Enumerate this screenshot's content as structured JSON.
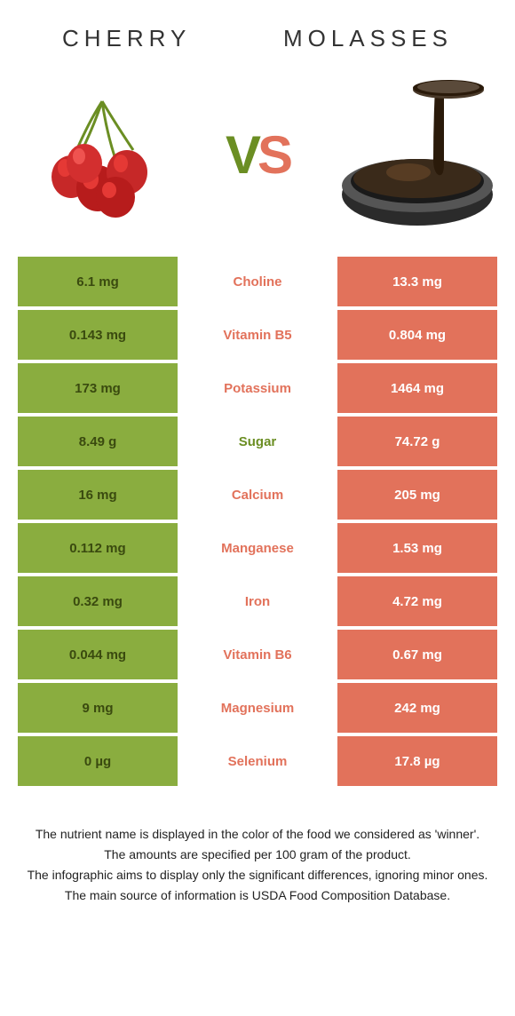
{
  "food1": {
    "name": "CHERRY",
    "color": "#8aad3f"
  },
  "food2": {
    "name": "MOLASSES",
    "color": "#e2725b"
  },
  "vs": {
    "v": "V",
    "s": "S"
  },
  "nutrient_green": "#6b8e23",
  "nutrient_orange": "#e2725b",
  "rows": [
    {
      "left": "6.1 mg",
      "name": "Choline",
      "right": "13.3 mg",
      "winner": "right"
    },
    {
      "left": "0.143 mg",
      "name": "Vitamin B5",
      "right": "0.804 mg",
      "winner": "right"
    },
    {
      "left": "173 mg",
      "name": "Potassium",
      "right": "1464 mg",
      "winner": "right"
    },
    {
      "left": "8.49 g",
      "name": "Sugar",
      "right": "74.72 g",
      "winner": "left"
    },
    {
      "left": "16 mg",
      "name": "Calcium",
      "right": "205 mg",
      "winner": "right"
    },
    {
      "left": "0.112 mg",
      "name": "Manganese",
      "right": "1.53 mg",
      "winner": "right"
    },
    {
      "left": "0.32 mg",
      "name": "Iron",
      "right": "4.72 mg",
      "winner": "right"
    },
    {
      "left": "0.044 mg",
      "name": "Vitamin B6",
      "right": "0.67 mg",
      "winner": "right"
    },
    {
      "left": "9 mg",
      "name": "Magnesium",
      "right": "242 mg",
      "winner": "right"
    },
    {
      "left": "0 µg",
      "name": "Selenium",
      "right": "17.8 µg",
      "winner": "right"
    }
  ],
  "footer": {
    "l1": "The nutrient name is displayed in the color of the food we considered as 'winner'.",
    "l2": "The amounts are specified per 100 gram of the product.",
    "l3": "The infographic aims to display only the significant differences, ignoring minor ones.",
    "l4": "The main source of information is USDA Food Composition Database."
  }
}
